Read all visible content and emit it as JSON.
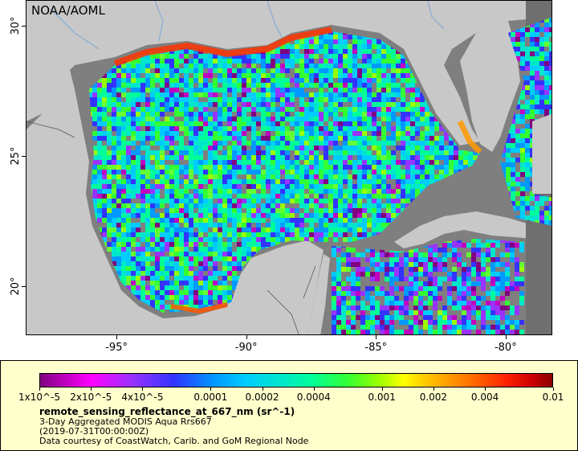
{
  "map": {
    "credit": "NOAA/AOML",
    "region": "Gulf of Mexico and Caribbean",
    "colors": {
      "land": "#c8c8c8",
      "no_data": "#7f7f7f",
      "rivers": "#7aa7d6",
      "borders": "#555555"
    },
    "x_axis": {
      "ticks": [
        {
          "value": -95,
          "label": "-95°"
        },
        {
          "value": -90,
          "label": "-90°"
        },
        {
          "value": -85,
          "label": "-85°"
        },
        {
          "value": -80,
          "label": "-80°"
        }
      ]
    },
    "y_axis": {
      "ticks": [
        {
          "value": 30,
          "label": "30°"
        },
        {
          "value": 25,
          "label": "25°"
        },
        {
          "value": 20,
          "label": "20°"
        }
      ]
    }
  },
  "legend": {
    "scale": "log",
    "range": [
      1e-05,
      0.01
    ],
    "ticks": [
      {
        "value": 1e-05,
        "label": "1x10^-5"
      },
      {
        "value": 2e-05,
        "label": "2x10^-5"
      },
      {
        "value": 4e-05,
        "label": "4x10^-5"
      },
      {
        "value": 0.0001,
        "label": "0.0001"
      },
      {
        "value": 0.0002,
        "label": "0.0002"
      },
      {
        "value": 0.0004,
        "label": "0.0004"
      },
      {
        "value": 0.001,
        "label": "0.001"
      },
      {
        "value": 0.002,
        "label": "0.002"
      },
      {
        "value": 0.004,
        "label": "0.004"
      },
      {
        "value": 0.01,
        "label": "0.01"
      }
    ],
    "variable": "remote_sensing_reflectance_at_667_nm (sr^-1)",
    "dataset": "3-Day Aggregated MODIS Aqua Rrs667",
    "time": "(2019-07-31T00:00:00Z)",
    "courtesy": "Data courtesy of CoastWatch, Carib. and GoM Regional Node"
  }
}
